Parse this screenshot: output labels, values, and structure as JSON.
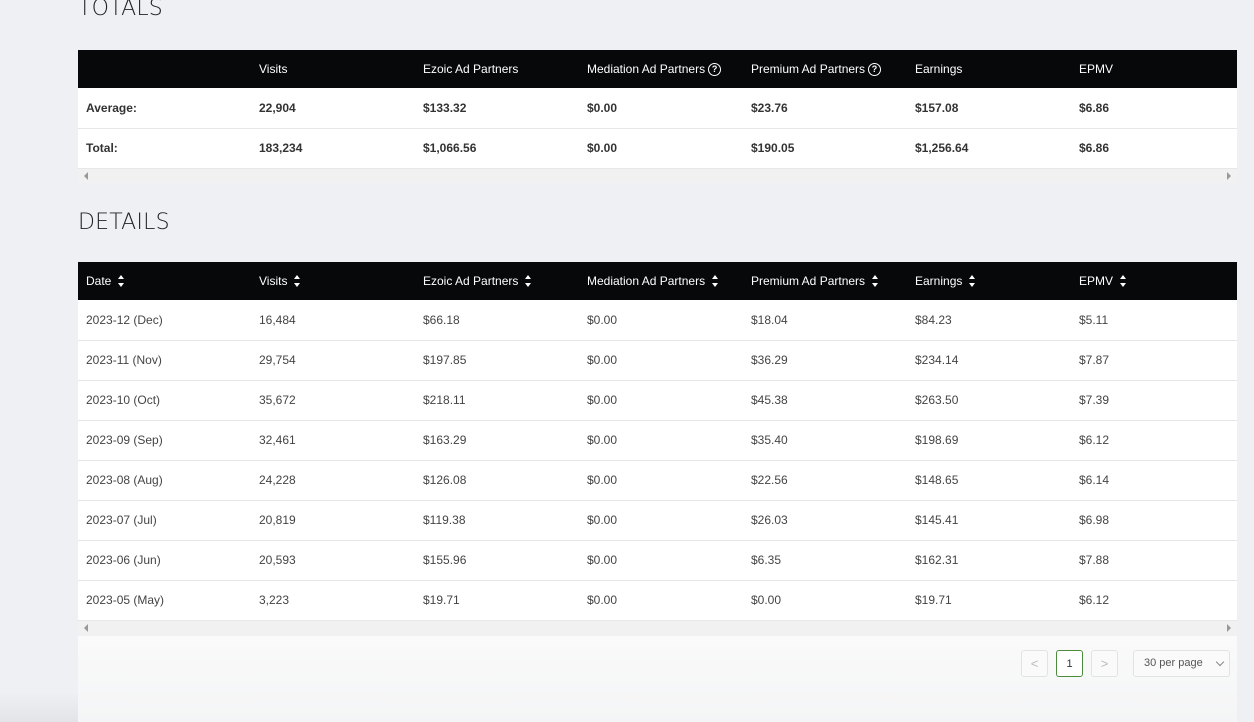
{
  "totals": {
    "title": "TOTALS",
    "headers": [
      "",
      "Visits",
      "Ezoic Ad Partners",
      "Mediation Ad Partners",
      "Premium Ad Partners",
      "Earnings",
      "EPMV"
    ],
    "rows": [
      [
        "Average:",
        "22,904",
        "$133.32",
        "$0.00",
        "$23.76",
        "$157.08",
        "$6.86"
      ],
      [
        "Total:",
        "183,234",
        "$1,066.56",
        "$0.00",
        "$190.05",
        "$1,256.64",
        "$6.86"
      ]
    ]
  },
  "details": {
    "title": "DETAILS",
    "headers": [
      "Date",
      "Visits",
      "Ezoic Ad Partners",
      "Mediation Ad Partners",
      "Premium Ad Partners",
      "Earnings",
      "EPMV"
    ],
    "rows": [
      [
        "2023-12 (Dec)",
        "16,484",
        "$66.18",
        "$0.00",
        "$18.04",
        "$84.23",
        "$5.11"
      ],
      [
        "2023-11 (Nov)",
        "29,754",
        "$197.85",
        "$0.00",
        "$36.29",
        "$234.14",
        "$7.87"
      ],
      [
        "2023-10 (Oct)",
        "35,672",
        "$218.11",
        "$0.00",
        "$45.38",
        "$263.50",
        "$7.39"
      ],
      [
        "2023-09 (Sep)",
        "32,461",
        "$163.29",
        "$0.00",
        "$35.40",
        "$198.69",
        "$6.12"
      ],
      [
        "2023-08 (Aug)",
        "24,228",
        "$126.08",
        "$0.00",
        "$22.56",
        "$148.65",
        "$6.14"
      ],
      [
        "2023-07 (Jul)",
        "20,819",
        "$119.38",
        "$0.00",
        "$26.03",
        "$145.41",
        "$6.98"
      ],
      [
        "2023-06 (Jun)",
        "20,593",
        "$155.96",
        "$0.00",
        "$6.35",
        "$162.31",
        "$7.88"
      ],
      [
        "2023-05 (May)",
        "3,223",
        "$19.71",
        "$0.00",
        "$0.00",
        "$19.71",
        "$6.12"
      ]
    ]
  },
  "pagination": {
    "prev_label": "<",
    "current_page": "1",
    "next_label": ">",
    "per_page": "30 per page"
  },
  "icons": {
    "help": "question-circle",
    "sort": "sort-up-down",
    "scroll_left": "caret-left",
    "scroll_right": "caret-right"
  },
  "colors": {
    "header_bg": "#06080a",
    "page_bg": "#eef0f3",
    "active_page_border": "#4b8b3b"
  }
}
